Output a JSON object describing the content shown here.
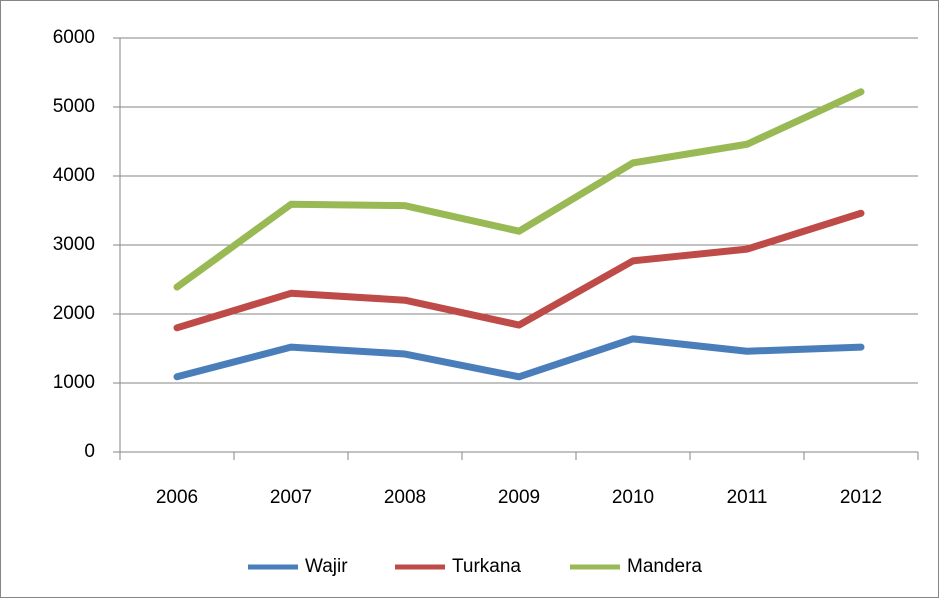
{
  "chart_data": {
    "type": "line",
    "categories": [
      "2006",
      "2007",
      "2008",
      "2009",
      "2010",
      "2011",
      "2012"
    ],
    "series": [
      {
        "name": "Wajir",
        "color": "#4a7ebb",
        "values": [
          1090,
          1520,
          1420,
          1090,
          1640,
          1460,
          1520
        ]
      },
      {
        "name": "Turkana",
        "color": "#be4b48",
        "values": [
          1800,
          2300,
          2200,
          1840,
          2770,
          2940,
          3460
        ]
      },
      {
        "name": "Mandera",
        "color": "#98b954",
        "values": [
          2390,
          3590,
          3570,
          3200,
          4190,
          4460,
          5220
        ]
      }
    ],
    "ylim": [
      0,
      6000
    ],
    "yticks": [
      0,
      1000,
      2000,
      3000,
      4000,
      5000,
      6000
    ],
    "grid": true,
    "legend": "bottom"
  }
}
